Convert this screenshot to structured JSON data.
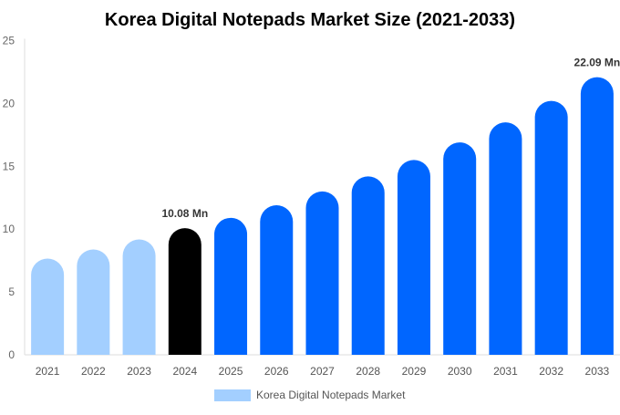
{
  "chart_data": {
    "type": "bar",
    "title": "Korea Digital Notepads Market Size (2021-2033)",
    "categories": [
      "2021",
      "2022",
      "2023",
      "2024",
      "2025",
      "2026",
      "2027",
      "2028",
      "2029",
      "2030",
      "2031",
      "2032",
      "2033"
    ],
    "series": [
      {
        "name": "Korea Digital Notepads Market",
        "values": [
          7.66,
          8.38,
          9.18,
          10.08,
          10.9,
          11.9,
          13.0,
          14.2,
          15.5,
          16.9,
          18.5,
          20.2,
          22.09
        ]
      }
    ],
    "data_labels": [
      {
        "index": 3,
        "text": "10.08 Mn"
      },
      {
        "index": 12,
        "text": "22.09 Mn"
      }
    ],
    "ylim": [
      0,
      25
    ],
    "yticks": [
      0,
      5,
      10,
      15,
      20,
      25
    ],
    "grid": false,
    "legend": "bottom",
    "colors": {
      "historic": "#a3cfff",
      "base_year": "#000000",
      "forecast": "#0066ff"
    },
    "base_year_index": 3
  }
}
